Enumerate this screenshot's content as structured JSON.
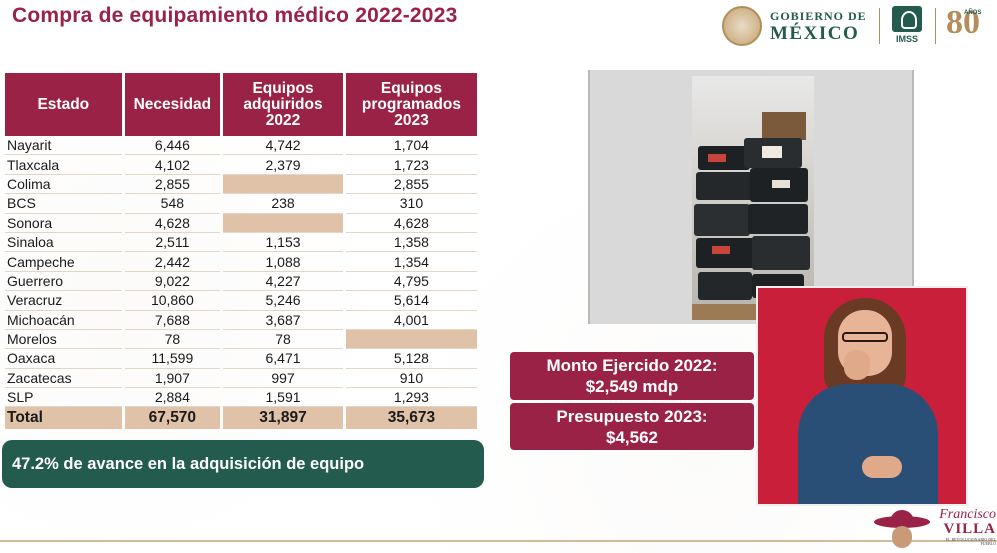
{
  "header": {
    "title": "Compra de equipamiento médico 2022-2023",
    "gobierno_top": "GOBIERNO DE",
    "gobierno_bottom": "MÉXICO",
    "imss_label": "IMSS",
    "eighty_number": "80",
    "eighty_small": "AÑOS"
  },
  "table": {
    "headers": {
      "estado": "Estado",
      "necesidad": "Necesidad",
      "adquiridos": "Equipos adquiridos 2022",
      "programados": "Equipos programados 2023"
    },
    "rows": [
      {
        "estado": "Nayarit",
        "necesidad": "6,446",
        "adquiridos": "4,742",
        "programados": "1,704"
      },
      {
        "estado": "Tlaxcala",
        "necesidad": "4,102",
        "adquiridos": "2,379",
        "programados": "1,723"
      },
      {
        "estado": "Colima",
        "necesidad": "2,855",
        "adquiridos": "",
        "programados": "2,855"
      },
      {
        "estado": "BCS",
        "necesidad": "548",
        "adquiridos": "238",
        "programados": "310"
      },
      {
        "estado": "Sonora",
        "necesidad": "4,628",
        "adquiridos": "",
        "programados": "4,628"
      },
      {
        "estado": "Sinaloa",
        "necesidad": "2,511",
        "adquiridos": "1,153",
        "programados": "1,358"
      },
      {
        "estado": "Campeche",
        "necesidad": "2,442",
        "adquiridos": "1,088",
        "programados": "1,354"
      },
      {
        "estado": "Guerrero",
        "necesidad": "9,022",
        "adquiridos": "4,227",
        "programados": "4,795"
      },
      {
        "estado": "Veracruz",
        "necesidad": "10,860",
        "adquiridos": "5,246",
        "programados": "5,614"
      },
      {
        "estado": "Michoacán",
        "necesidad": "7,688",
        "adquiridos": "3,687",
        "programados": "4,001"
      },
      {
        "estado": "Morelos",
        "necesidad": "78",
        "adquiridos": "78",
        "programados": ""
      },
      {
        "estado": "Oaxaca",
        "necesidad": "11,599",
        "adquiridos": "6,471",
        "programados": "5,128"
      },
      {
        "estado": "Zacatecas",
        "necesidad": "1,907",
        "adquiridos": "997",
        "programados": "910"
      },
      {
        "estado": "SLP",
        "necesidad": "2,884",
        "adquiridos": "1,591",
        "programados": "1,293"
      }
    ],
    "total": {
      "estado": "Total",
      "necesidad": "67,570",
      "adquiridos": "31,897",
      "programados": "35,673"
    }
  },
  "progress_banner": "47.2% de avance en la adquisición de equipo",
  "amounts": {
    "monto_label": "Monto Ejercido 2022:",
    "monto_value": "$2,549 mdp",
    "presupuesto_label": "Presupuesto 2023:",
    "presupuesto_value": "$4,562"
  },
  "footer": {
    "villa_name": "Francisco",
    "villa_surname": "VILLA",
    "villa_sub": "EL REVOLUCIONARIO DEL PUEBLO"
  },
  "colors": {
    "guinda": "#9b2247",
    "verde": "#235b4e",
    "dorado": "#b38e5d",
    "beige": "#e0c2a8"
  },
  "icons": [
    "gobierno-seal-icon",
    "imss-logo-icon",
    "80-anos-logo-icon",
    "villa-logo-icon"
  ]
}
